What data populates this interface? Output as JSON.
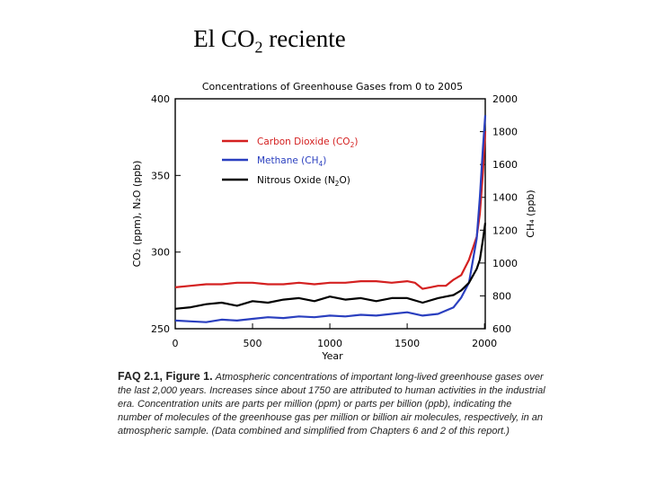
{
  "slide": {
    "title_prefix": "El CO",
    "title_sub": "2",
    "title_suffix": " reciente"
  },
  "caption": {
    "lead": "FAQ 2.1, Figure 1.",
    "body": "Atmospheric concentrations of important long-lived greenhouse gases over the last 2,000 years. Increases since about 1750 are attributed to human activities in the industrial era. Concentration units are parts per million (ppm) or parts per billion (ppb), indicating the number of molecules of the greenhouse gas per million or billion air molecules, respectively, in an atmospheric sample. (Data combined and simplified from Chapters 6 and 2 of this report.)"
  },
  "chart_data": {
    "type": "line",
    "title": "Concentrations of Greenhouse Gases from 0 to 2005",
    "xlabel": "Year",
    "ylabel_left": "CO₂ (ppm), N₂O (ppb)",
    "ylabel_right": "CH₄ (ppb)",
    "xlim": [
      0,
      2005
    ],
    "ylim_left": [
      250,
      400
    ],
    "ylim_right": [
      600,
      2000
    ],
    "x_ticks": [
      "0",
      "500",
      "1000",
      "1500",
      "2000"
    ],
    "y_ticks_left": [
      "250",
      "300",
      "350",
      "400"
    ],
    "y_ticks_right": [
      "600",
      "800",
      "1000",
      "1200",
      "1400",
      "1600",
      "1800",
      "2000"
    ],
    "legend_position": "top-left",
    "series": [
      {
        "name": "Carbon Dioxide (CO₂)",
        "legend_prefix": "Carbon Dioxide (CO",
        "legend_sub": "2",
        "legend_suffix": ")",
        "axis": "left",
        "color": "#d42020",
        "x": [
          0,
          100,
          200,
          300,
          400,
          500,
          600,
          700,
          800,
          900,
          1000,
          1100,
          1200,
          1300,
          1400,
          1500,
          1550,
          1600,
          1650,
          1700,
          1750,
          1800,
          1850,
          1900,
          1950,
          1970,
          1990,
          2005
        ],
        "y": [
          277,
          278,
          279,
          279,
          280,
          280,
          279,
          279,
          280,
          279,
          280,
          280,
          281,
          281,
          280,
          281,
          280,
          276,
          277,
          278,
          278,
          282,
          285,
          295,
          310,
          325,
          352,
          379
        ]
      },
      {
        "name": "Methane (CH₄)",
        "legend_prefix": "Methane (CH",
        "legend_sub": "4",
        "legend_suffix": ")",
        "axis": "right",
        "color": "#2a3fbf",
        "x": [
          0,
          100,
          200,
          300,
          400,
          500,
          600,
          700,
          800,
          900,
          1000,
          1100,
          1200,
          1300,
          1400,
          1500,
          1600,
          1700,
          1750,
          1800,
          1850,
          1900,
          1950,
          1970,
          1990,
          2005
        ],
        "y": [
          650,
          645,
          640,
          655,
          650,
          660,
          670,
          665,
          675,
          670,
          680,
          675,
          685,
          680,
          690,
          700,
          680,
          690,
          710,
          730,
          790,
          880,
          1150,
          1400,
          1700,
          1900
        ]
      },
      {
        "name": "Nitrous Oxide (N₂O)",
        "legend_prefix": "Nitrous Oxide (N",
        "legend_sub": "2",
        "legend_suffix": "O)",
        "axis": "left",
        "color": "#000000",
        "x": [
          0,
          100,
          200,
          300,
          400,
          500,
          600,
          700,
          800,
          900,
          1000,
          1100,
          1200,
          1300,
          1400,
          1500,
          1600,
          1700,
          1750,
          1800,
          1850,
          1900,
          1950,
          1970,
          1990,
          2005
        ],
        "y": [
          263,
          264,
          266,
          267,
          265,
          268,
          267,
          269,
          270,
          268,
          271,
          269,
          270,
          268,
          270,
          270,
          267,
          270,
          271,
          272,
          275,
          280,
          289,
          295,
          308,
          319
        ]
      }
    ]
  }
}
